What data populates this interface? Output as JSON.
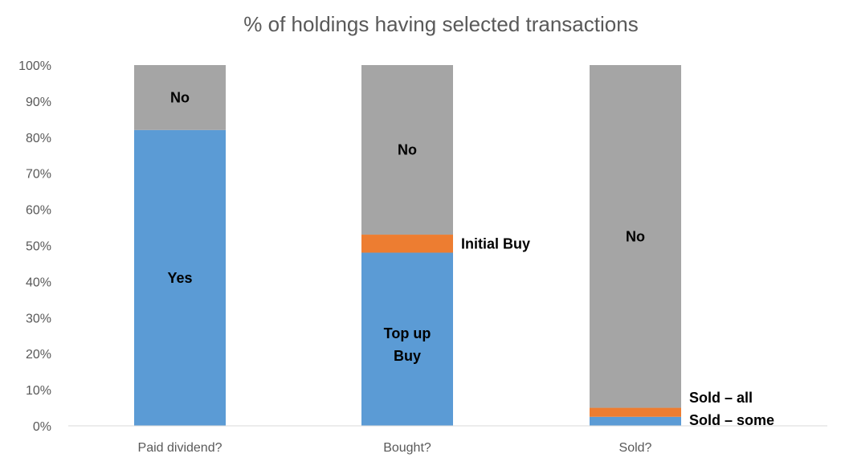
{
  "chart_data": {
    "type": "bar",
    "stacked": true,
    "title": "% of holdings having selected transactions",
    "xlabel": "",
    "ylabel": "",
    "ylim": [
      0,
      100
    ],
    "yticks": [
      "0%",
      "10%",
      "20%",
      "30%",
      "40%",
      "50%",
      "60%",
      "70%",
      "80%",
      "90%",
      "100%"
    ],
    "categories": [
      "Paid dividend?",
      "Bought?",
      "Sold?"
    ],
    "grid": false,
    "legend": "none",
    "bars": [
      {
        "category": "Paid dividend?",
        "segments": [
          {
            "label": "Yes",
            "value": 82,
            "color": "#5B9BD5",
            "label_position": "inside"
          },
          {
            "label": "No",
            "value": 18,
            "color": "#A5A5A5",
            "label_position": "inside"
          }
        ]
      },
      {
        "category": "Bought?",
        "segments": [
          {
            "label": "Top up Buy",
            "value": 48,
            "color": "#5B9BD5",
            "label_position": "inside"
          },
          {
            "label": "Initial Buy",
            "value": 5,
            "color": "#ED7D31",
            "label_position": "right"
          },
          {
            "label": "No",
            "value": 47,
            "color": "#A5A5A5",
            "label_position": "inside"
          }
        ]
      },
      {
        "category": "Sold?",
        "segments": [
          {
            "label": "Sold – some",
            "value": 2.5,
            "color": "#5B9BD5",
            "label_position": "right"
          },
          {
            "label": "Sold – all",
            "value": 2.5,
            "color": "#ED7D31",
            "label_position": "right"
          },
          {
            "label": "No",
            "value": 95,
            "color": "#A5A5A5",
            "label_position": "inside"
          }
        ]
      }
    ]
  }
}
